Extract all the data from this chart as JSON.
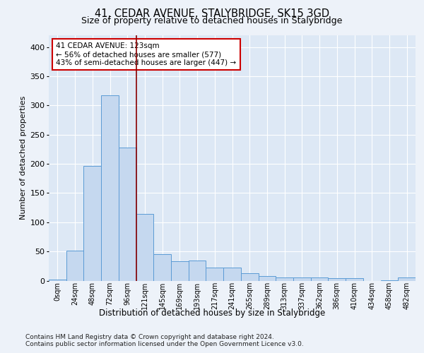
{
  "title1": "41, CEDAR AVENUE, STALYBRIDGE, SK15 3GD",
  "title2": "Size of property relative to detached houses in Stalybridge",
  "xlabel": "Distribution of detached houses by size in Stalybridge",
  "ylabel": "Number of detached properties",
  "categories": [
    "0sqm",
    "24sqm",
    "48sqm",
    "72sqm",
    "96sqm",
    "121sqm",
    "145sqm",
    "169sqm",
    "193sqm",
    "217sqm",
    "241sqm",
    "265sqm",
    "289sqm",
    "313sqm",
    "337sqm",
    "362sqm",
    "386sqm",
    "410sqm",
    "434sqm",
    "458sqm",
    "482sqm"
  ],
  "values": [
    2,
    51,
    196,
    317,
    228,
    114,
    45,
    33,
    35,
    22,
    22,
    13,
    8,
    6,
    5,
    5,
    4,
    4,
    0,
    1,
    5
  ],
  "bar_color": "#c5d8ef",
  "bar_edge_color": "#5b9bd5",
  "vline_color": "#8b0000",
  "annotation_text": "41 CEDAR AVENUE: 123sqm\n← 56% of detached houses are smaller (577)\n43% of semi-detached houses are larger (447) →",
  "annotation_box_color": "#ffffff",
  "annotation_box_edge": "#cc0000",
  "bg_color": "#edf2f9",
  "plot_bg_color": "#dde8f5",
  "grid_color": "#ffffff",
  "footer1": "Contains HM Land Registry data © Crown copyright and database right 2024.",
  "footer2": "Contains public sector information licensed under the Open Government Licence v3.0.",
  "ylim": [
    0,
    420
  ],
  "yticks": [
    0,
    50,
    100,
    150,
    200,
    250,
    300,
    350,
    400
  ]
}
